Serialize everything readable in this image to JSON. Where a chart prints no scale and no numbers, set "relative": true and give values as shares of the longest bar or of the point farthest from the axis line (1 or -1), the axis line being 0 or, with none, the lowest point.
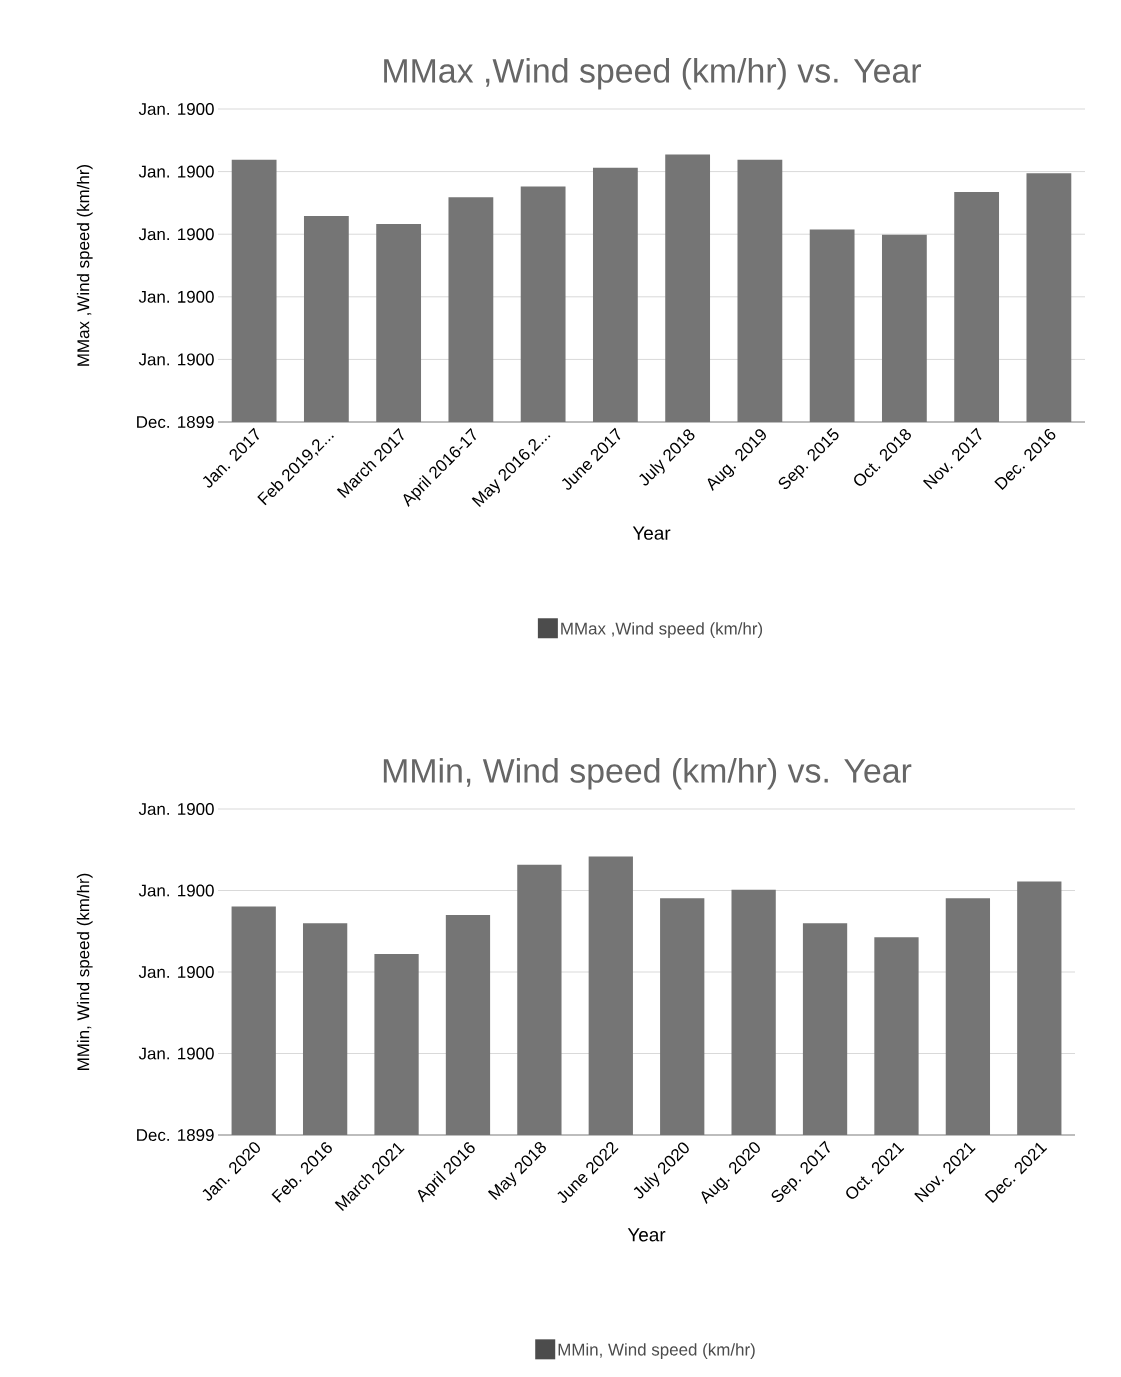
{
  "chart_data": [
    {
      "type": "bar",
      "title": "MMax ,Wind speed (km/hr) vs. Year",
      "xlabel": "Year",
      "ylabel": "MMax ,Wind speed (km/hr)",
      "categories": [
        "Jan. 2017",
        "Feb 2019,2...",
        "March 2017",
        "April 2016-17",
        "May 2016,2...",
        "June 2017",
        "July 2018",
        "Aug. 2019",
        "Sep. 2015",
        "Oct. 2018",
        "Nov. 2017",
        "Dec. 2016"
      ],
      "series": [
        {
          "name": "MMax ,Wind speed (km/hr)",
          "color": "#757575",
          "values": [
            0.98,
            0.77,
            0.74,
            0.84,
            0.88,
            0.95,
            1,
            0.98,
            0.72,
            0.7,
            0.86,
            0.93
          ]
        }
      ],
      "relative": true,
      "grid": "y",
      "legend": "bottom",
      "annotations": [
        "Dec. 1899",
        "Jan. 1900",
        "Jan. 1900",
        "Jan. 1900",
        "Jan. 1900",
        "Jan. 1900"
      ]
    },
    {
      "type": "bar",
      "title": "MMin, Wind speed (km/hr) vs. Year",
      "xlabel": "Year",
      "ylabel": "MMin, Wind speed (km/hr)",
      "categories": [
        "Jan. 2020",
        "Feb. 2016",
        "March 2021",
        "April 2016",
        "May 2018",
        "June 2022",
        "July 2020",
        "Aug. 2020",
        "Sep. 2017",
        "Oct. 2021",
        "Nov. 2021",
        "Dec. 2021"
      ],
      "series": [
        {
          "name": "MMin, Wind speed (km/hr)",
          "color": "#757575",
          "values": [
            0.82,
            0.76,
            0.65,
            0.79,
            0.97,
            1,
            0.85,
            0.88,
            0.76,
            0.71,
            0.85,
            0.91
          ]
        }
      ],
      "relative": true,
      "grid": "y",
      "legend": "bottom",
      "annotations": [
        "Dec. 1899",
        "Jan. 1900",
        "Jan. 1900",
        "Jan. 1900",
        "Jan. 1900"
      ]
    }
  ]
}
